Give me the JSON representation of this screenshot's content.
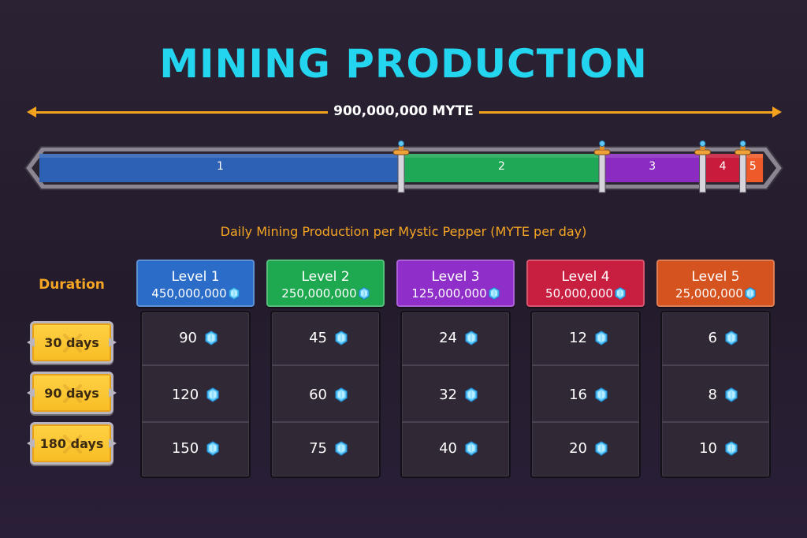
{
  "title": "MINING PRODUCTION",
  "total_supply": "900,000,000 MYTE",
  "supply_bar": {
    "segments": [
      {
        "label": "1",
        "share": 0.5,
        "color": "#2d61b5"
      },
      {
        "label": "2",
        "share": 0.2778,
        "color": "#1fa855"
      },
      {
        "label": "3",
        "share": 0.1389,
        "color": "#8b2bc2"
      },
      {
        "label": "4",
        "share": 0.0556,
        "color": "#c91c3b"
      },
      {
        "label": "5",
        "share": 0.0278,
        "color": "#ef5a2a"
      }
    ]
  },
  "subtitle": "Daily Mining Production per Mystic Pepper (MYTE per day)",
  "duration_label": "Duration",
  "durations": [
    "30 days",
    "90 days",
    "180 days"
  ],
  "levels": [
    {
      "name": "Level 1",
      "supply": "450,000,000",
      "color": "#2a6cc7",
      "values": [
        "90",
        "120",
        "150"
      ]
    },
    {
      "name": "Level 2",
      "supply": "250,000,000",
      "color": "#1ea84f",
      "values": [
        "45",
        "60",
        "75"
      ]
    },
    {
      "name": "Level 3",
      "supply": "125,000,000",
      "color": "#8f2ec8",
      "values": [
        "24",
        "32",
        "40"
      ]
    },
    {
      "name": "Level 4",
      "supply": "50,000,000",
      "color": "#c81e40",
      "values": [
        "12",
        "16",
        "20"
      ]
    },
    {
      "name": "Level 5",
      "supply": "25,000,000",
      "color": "#d4531e",
      "values": [
        "6",
        "8",
        "10"
      ]
    }
  ],
  "icons": {
    "token": "diamond-gem-icon",
    "sword": "sword-divider-icon"
  }
}
